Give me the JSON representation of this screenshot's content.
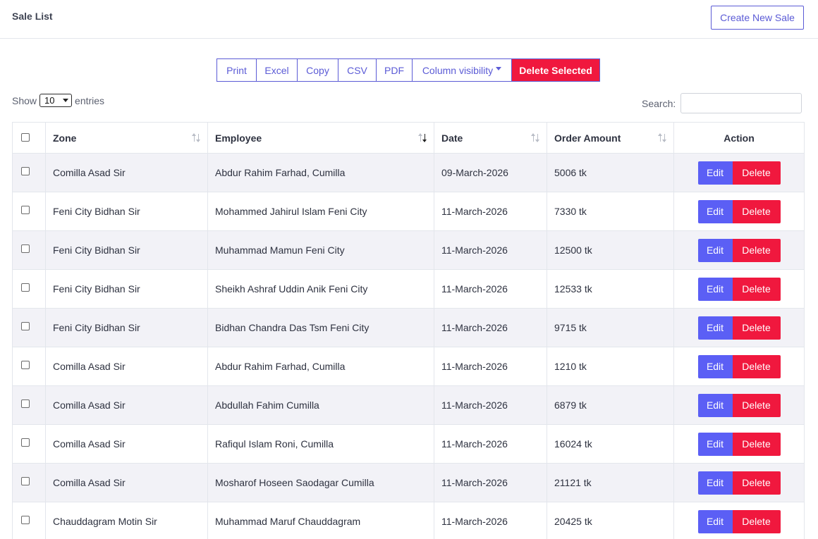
{
  "header": {
    "title": "Sale List",
    "create_button": "Create New Sale"
  },
  "toolbar": {
    "buttons": [
      "Print",
      "Excel",
      "Copy",
      "CSV",
      "PDF",
      "Column visibility"
    ],
    "delete_selected": "Delete Selected"
  },
  "length": {
    "show_label": "Show",
    "value": "10",
    "entries_label": "entries"
  },
  "search": {
    "label": "Search:",
    "value": ""
  },
  "table": {
    "headers": [
      "Zone",
      "Employee",
      "Date",
      "Order Amount",
      "Action"
    ],
    "sorted_column": "Employee",
    "rows": [
      {
        "zone": "Comilla Asad Sir",
        "employee": "Abdur Rahim Farhad, Cumilla",
        "date": "09-March-2026",
        "amount": "5006 tk"
      },
      {
        "zone": "Feni City Bidhan Sir",
        "employee": "Mohammed Jahirul Islam Feni City",
        "date": "11-March-2026",
        "amount": "7330 tk"
      },
      {
        "zone": "Feni City Bidhan Sir",
        "employee": "Muhammad Mamun Feni City",
        "date": "11-March-2026",
        "amount": "12500 tk"
      },
      {
        "zone": "Feni City Bidhan Sir",
        "employee": "Sheikh Ashraf Uddin Anik Feni City",
        "date": "11-March-2026",
        "amount": "12533 tk"
      },
      {
        "zone": "Feni City Bidhan Sir",
        "employee": "Bidhan Chandra Das Tsm Feni City",
        "date": "11-March-2026",
        "amount": "9715 tk"
      },
      {
        "zone": "Comilla Asad Sir",
        "employee": "Abdur Rahim Farhad, Cumilla",
        "date": "11-March-2026",
        "amount": "1210 tk"
      },
      {
        "zone": "Comilla Asad Sir",
        "employee": "Abdullah Fahim Cumilla",
        "date": "11-March-2026",
        "amount": "6879 tk"
      },
      {
        "zone": "Comilla Asad Sir",
        "employee": "Rafiqul Islam Roni, Cumilla",
        "date": "11-March-2026",
        "amount": "16024 tk"
      },
      {
        "zone": "Comilla Asad Sir",
        "employee": "Mosharof Hoseen Saodagar Cumilla",
        "date": "11-March-2026",
        "amount": "21121 tk"
      },
      {
        "zone": "Chauddagram Motin Sir",
        "employee": "Muhammad Maruf Chauddagram",
        "date": "11-March-2026",
        "amount": "20425 tk"
      }
    ],
    "edit_label": "Edit",
    "delete_label": "Delete"
  },
  "colors": {
    "primary": "#5b5ff5",
    "danger": "#f0183e",
    "stripe": "#f2f2f7"
  }
}
